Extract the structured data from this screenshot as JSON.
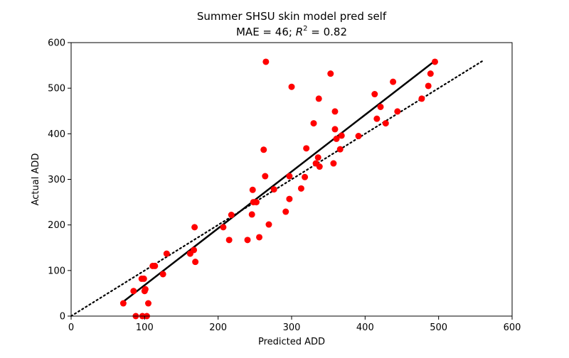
{
  "chart_data": {
    "type": "scatter",
    "title": "Summer SHSU skin model pred self",
    "subtitle_prefix": "MAE = 46; ",
    "subtitle_r2_base": "R",
    "subtitle_r2_exp": "2",
    "subtitle_suffix": " = 0.82",
    "xlabel": "Predicted ADD",
    "ylabel": "Actual ADD",
    "xlim": [
      0,
      600
    ],
    "ylim": [
      0,
      600
    ],
    "xticks": [
      "0",
      "100",
      "200",
      "300",
      "400",
      "500",
      "600"
    ],
    "yticks": [
      "0",
      "100",
      "200",
      "300",
      "400",
      "500",
      "600"
    ],
    "grid": false,
    "point_color": "#ff0000",
    "points": [
      [
        71,
        28
      ],
      [
        85,
        55
      ],
      [
        88,
        0
      ],
      [
        96,
        82
      ],
      [
        97,
        0
      ],
      [
        99,
        82
      ],
      [
        100,
        55
      ],
      [
        101,
        59
      ],
      [
        103,
        0
      ],
      [
        105,
        28
      ],
      [
        111,
        110
      ],
      [
        114,
        110
      ],
      [
        125,
        92
      ],
      [
        130,
        137
      ],
      [
        162,
        137
      ],
      [
        167,
        145
      ],
      [
        168,
        195
      ],
      [
        169,
        119
      ],
      [
        207,
        195
      ],
      [
        215,
        167
      ],
      [
        218,
        222
      ],
      [
        240,
        167
      ],
      [
        246,
        223
      ],
      [
        247,
        277
      ],
      [
        248,
        250
      ],
      [
        252,
        250
      ],
      [
        256,
        173
      ],
      [
        262,
        365
      ],
      [
        264,
        307
      ],
      [
        265,
        558
      ],
      [
        269,
        201
      ],
      [
        276,
        278
      ],
      [
        292,
        229
      ],
      [
        297,
        257
      ],
      [
        297,
        307
      ],
      [
        300,
        503
      ],
      [
        313,
        280
      ],
      [
        318,
        305
      ],
      [
        320,
        368
      ],
      [
        330,
        423
      ],
      [
        333,
        335
      ],
      [
        336,
        348
      ],
      [
        337,
        477
      ],
      [
        338,
        328
      ],
      [
        353,
        532
      ],
      [
        357,
        335
      ],
      [
        359,
        410
      ],
      [
        359,
        449
      ],
      [
        361,
        389
      ],
      [
        366,
        366
      ],
      [
        368,
        396
      ],
      [
        391,
        395
      ],
      [
        413,
        487
      ],
      [
        416,
        433
      ],
      [
        421,
        459
      ],
      [
        428,
        423
      ],
      [
        438,
        514
      ],
      [
        444,
        449
      ],
      [
        477,
        477
      ],
      [
        486,
        505
      ],
      [
        489,
        532
      ],
      [
        495,
        558
      ]
    ],
    "fit_line": {
      "x": [
        72,
        495
      ],
      "y": [
        33,
        560
      ],
      "color": "#000000",
      "style": "solid"
    },
    "identity_line": {
      "x": [
        0,
        560
      ],
      "y": [
        0,
        560
      ],
      "color": "#000000",
      "style": "dotted"
    }
  }
}
